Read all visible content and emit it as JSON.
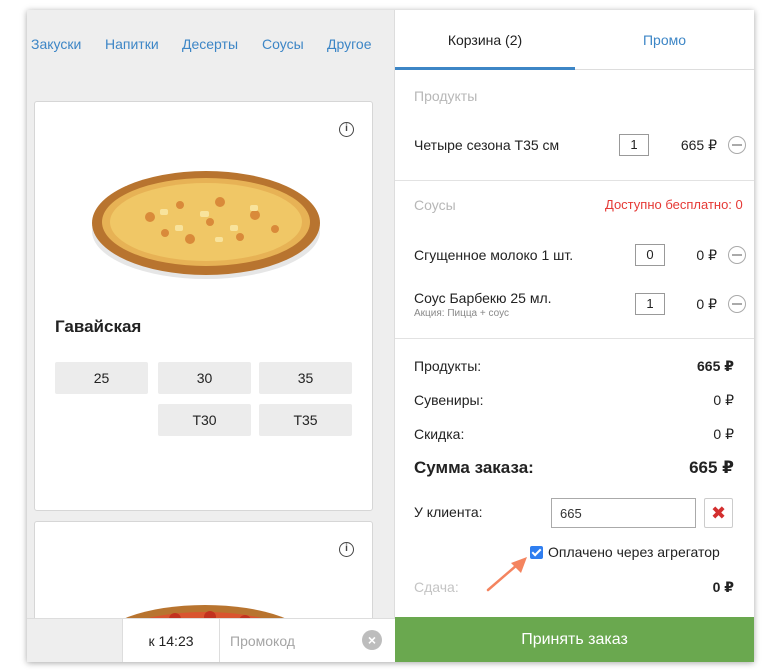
{
  "categories": [
    "Закуски",
    "Напитки",
    "Десерты",
    "Соусы",
    "Другое"
  ],
  "menu": {
    "card1": {
      "title": "Гавайская",
      "sizes": [
        "25",
        "30",
        "35",
        "Т30",
        "Т35"
      ]
    },
    "info_icon": "info-icon"
  },
  "bottom_bar": {
    "time": "к 14:23",
    "promo_placeholder": "Промокод"
  },
  "tabs": {
    "cart": "Корзина (2)",
    "promo": "Промо"
  },
  "cart": {
    "products_label": "Продукты",
    "products": [
      {
        "name": "Четыре сезона Т35 см",
        "qty": "1",
        "price": "665 ₽"
      }
    ],
    "sauces_label": "Соусы",
    "free_note": "Доступно бесплатно: 0",
    "sauces": [
      {
        "name": "Сгущенное молоко 1 шт.",
        "qty": "0",
        "price": "0 ₽",
        "note": ""
      },
      {
        "name": "Соус Барбекю 25 мл.",
        "qty": "1",
        "price": "0 ₽",
        "note": "Акция: Пицца + соус"
      }
    ]
  },
  "summary": {
    "products_label": "Продукты:",
    "products_value": "665 ₽",
    "souvenirs_label": "Сувениры:",
    "souvenirs_value": "0 ₽",
    "discount_label": "Скидка:",
    "discount_value": "0 ₽",
    "total_label": "Сумма заказа:",
    "total_value": "665 ₽",
    "client_label": "У клиента:",
    "client_value": "665",
    "paid_label": "Оплачено через агрегатор",
    "paid_checked": true,
    "change_label": "Сдача:",
    "change_value": "0 ₽"
  },
  "accept_button": "Принять заказ",
  "colors": {
    "link": "#3d86c6",
    "accept": "#6aa84f",
    "alert": "#e53935",
    "annotation": "#f4845f"
  }
}
